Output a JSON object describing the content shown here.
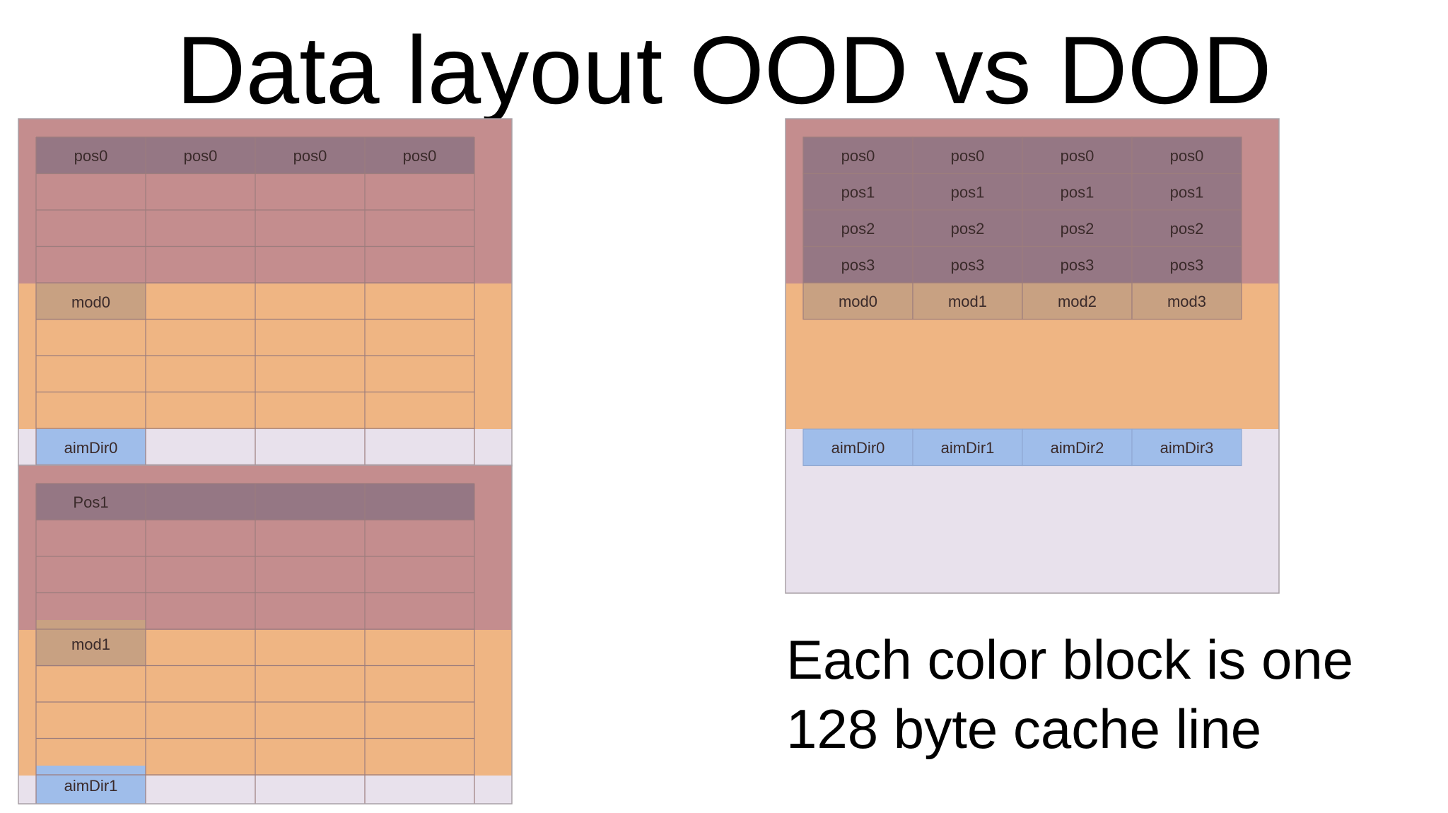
{
  "title": "Data layout OOD vs DOD",
  "caption": {
    "line1": "Each color block is one",
    "line2": "128 byte cache line"
  },
  "colors": {
    "pos_block": "#c48d8e",
    "mod_block": "#efb583",
    "aim_block": "#e8e1ec",
    "pos_cell": "#957784",
    "mod_cell": "#c8a182",
    "aim_cell": "#9fbdea",
    "grid_line": "#9c7d7d"
  },
  "ood": {
    "entities": [
      {
        "pos_label": "pos0",
        "pos_row": [
          "pos0",
          "pos0",
          "pos0",
          "pos0"
        ],
        "mod_label": "mod0",
        "aim_label": "aimDir0"
      },
      {
        "pos_label": "Pos1",
        "pos_row": [
          "Pos1",
          "",
          "",
          ""
        ],
        "mod_label": "mod1",
        "aim_label": "aimDir1"
      }
    ]
  },
  "dod": {
    "pos_rows": [
      [
        "pos0",
        "pos0",
        "pos0",
        "pos0"
      ],
      [
        "pos1",
        "pos1",
        "pos1",
        "pos1"
      ],
      [
        "pos2",
        "pos2",
        "pos2",
        "pos2"
      ],
      [
        "pos3",
        "pos3",
        "pos3",
        "pos3"
      ]
    ],
    "mod_row": [
      "mod0",
      "mod1",
      "mod2",
      "mod3"
    ],
    "aim_row": [
      "aimDir0",
      "aimDir1",
      "aimDir2",
      "aimDir3"
    ]
  }
}
